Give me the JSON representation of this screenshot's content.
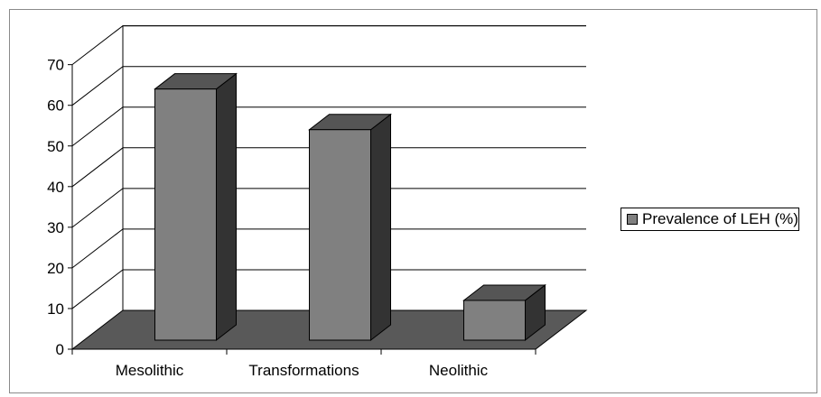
{
  "chart_data": {
    "type": "bar",
    "title": "",
    "xlabel": "",
    "ylabel": "",
    "categories": [
      "Mesolithic",
      "Transformations",
      "Neolithic"
    ],
    "series": [
      {
        "name": "Prevalence of LEH (%)",
        "values": [
          64,
          54,
          12
        ]
      }
    ],
    "ylim": [
      0,
      70
    ],
    "yticks": [
      "0",
      "10",
      "20",
      "30",
      "40",
      "50",
      "60",
      "70"
    ],
    "grid": true,
    "legend": "right",
    "three_d": true,
    "colors": {
      "bar_front": "#808080",
      "bar_top": "#555555",
      "bar_side": "#333333",
      "floor": "#595959",
      "gridline": "#000000"
    }
  }
}
